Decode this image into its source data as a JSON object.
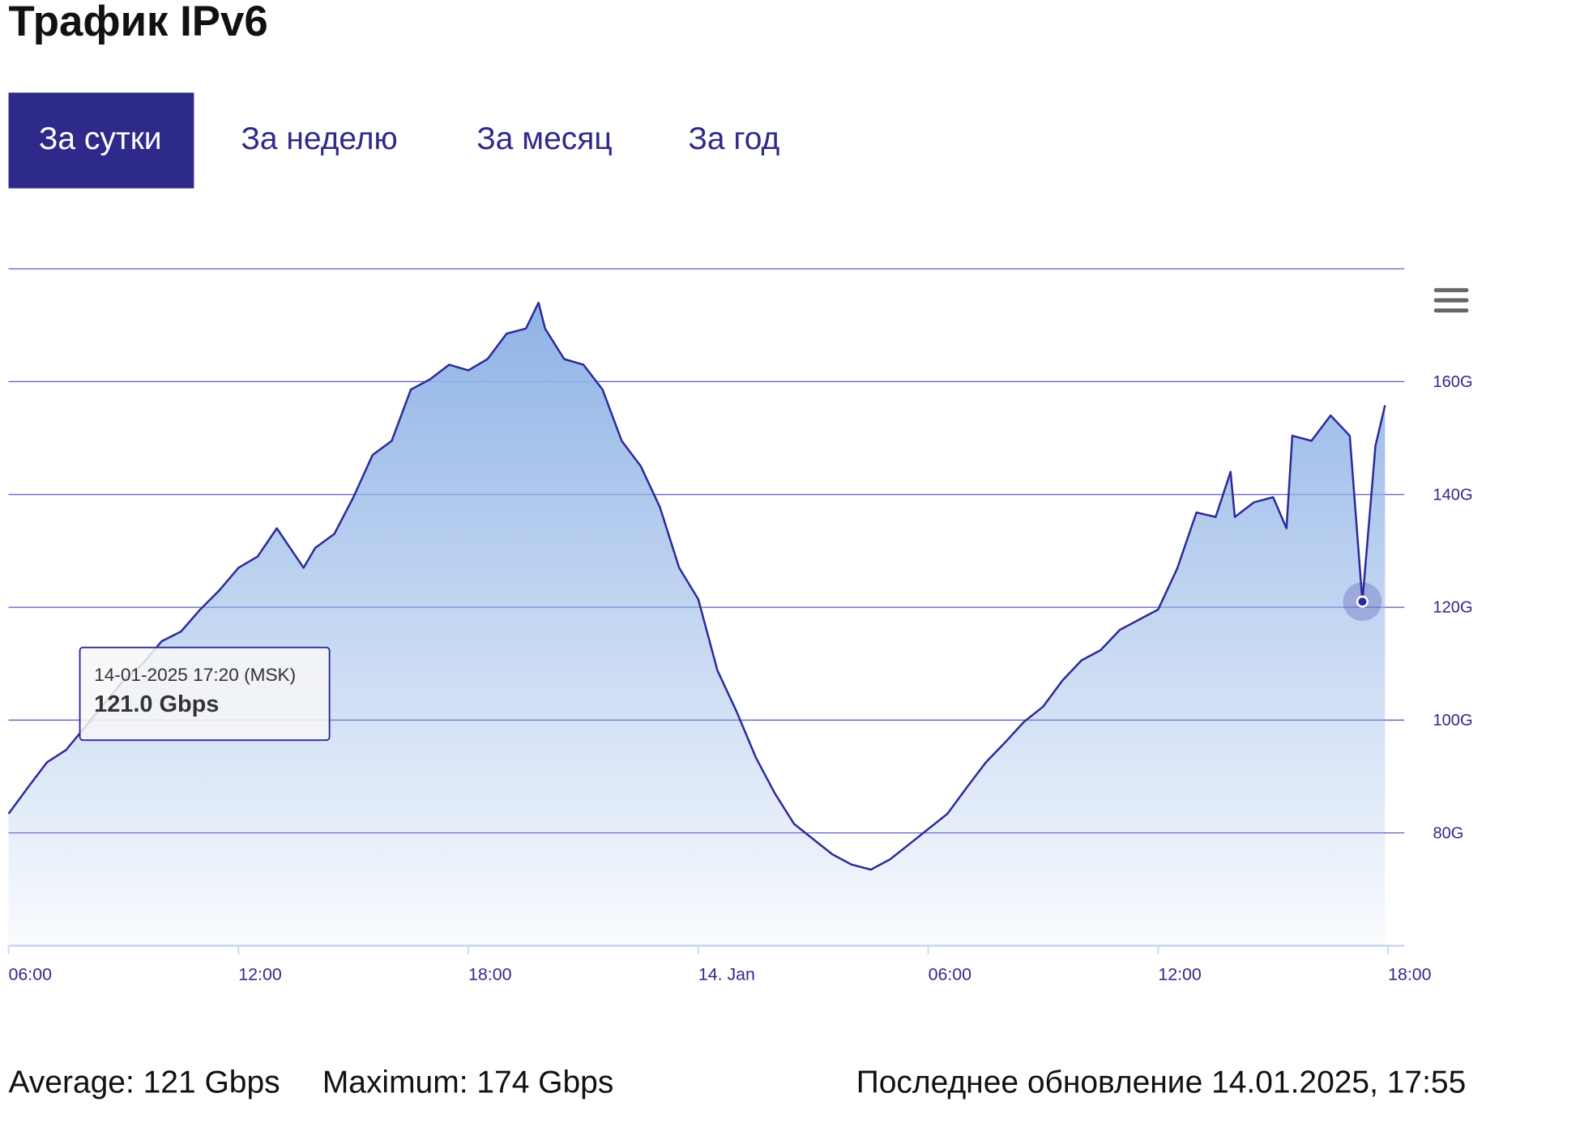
{
  "title": "Трафик IPv6",
  "tabs": [
    "За сутки",
    "За неделю",
    "За месяц",
    "За год"
  ],
  "chart_data": {
    "type": "area",
    "x": [
      6,
      6.5,
      7,
      7.5,
      8,
      8.5,
      9,
      9.5,
      10,
      10.5,
      11,
      11.5,
      12,
      12.5,
      13,
      13.7,
      14,
      14.5,
      15,
      15.5,
      16,
      16.5,
      17,
      17.5,
      18,
      18.5,
      19,
      19.5,
      19.83,
      20,
      20.5,
      21,
      21.5,
      22,
      22.5,
      23,
      23.5,
      24,
      24.5,
      25,
      25.5,
      26,
      26.5,
      27,
      27.5,
      28,
      28.5,
      29,
      29.5,
      30,
      30.5,
      31,
      31.5,
      32,
      32.5,
      33,
      33.5,
      34,
      34.5,
      35,
      35.5,
      36,
      36.5,
      37,
      37.5,
      37.89,
      38,
      38.5,
      39,
      39.35,
      39.5,
      40,
      40.5,
      41,
      41.33,
      41.67,
      41.92
    ],
    "series": [
      {
        "name": "IPv6",
        "color": "#2e2a9a",
        "values": [
          83.4,
          88,
          92.5,
          94.7,
          98.8,
          103,
          107,
          110,
          114,
          115.7,
          119.6,
          123,
          127,
          129,
          134,
          127,
          130.5,
          133,
          139.5,
          147,
          149.5,
          158.6,
          160.4,
          163,
          162,
          164,
          168.5,
          169.4,
          174,
          169.4,
          164,
          163,
          158.6,
          149.5,
          145,
          137.7,
          127,
          121.4,
          108.8,
          101.5,
          93.4,
          87,
          81.6,
          78.9,
          76.2,
          74.4,
          73.5,
          75.3,
          78,
          80.7,
          83.4,
          88,
          92.5,
          96,
          99.7,
          102.4,
          107,
          110.6,
          112.4,
          116,
          117.8,
          119.6,
          126.9,
          136.8,
          136,
          144,
          136,
          138.6,
          139.5,
          134,
          150.4,
          149.5,
          154,
          150.4,
          121,
          148.6,
          155.8
        ]
      }
    ],
    "xlim": [
      6,
      42
    ],
    "xticks": [
      {
        "value": 6,
        "label": "06:00"
      },
      {
        "value": 12,
        "label": "12:00"
      },
      {
        "value": 18,
        "label": "18:00"
      },
      {
        "value": 24,
        "label": "14. Jan"
      },
      {
        "value": 30,
        "label": "06:00"
      },
      {
        "value": 36,
        "label": "12:00"
      },
      {
        "value": 42,
        "label": "18:00"
      }
    ],
    "ylim": [
      60,
      180
    ],
    "yticks": [
      {
        "value": 80,
        "label": "80G"
      },
      {
        "value": 100,
        "label": "100G"
      },
      {
        "value": 120,
        "label": "120G"
      },
      {
        "value": 140,
        "label": "140G"
      },
      {
        "value": 160,
        "label": "160G"
      }
    ],
    "grid": true,
    "tooltip": {
      "header": "14-01-2025 17:20 (MSK)",
      "label": "121.0 Gbps"
    }
  },
  "footer": {
    "average": "Average: 121 Gbps",
    "maximum": "Maximum: 174 Gbps",
    "updated": "Последнее обновление 14.01.2025, 17:55"
  }
}
